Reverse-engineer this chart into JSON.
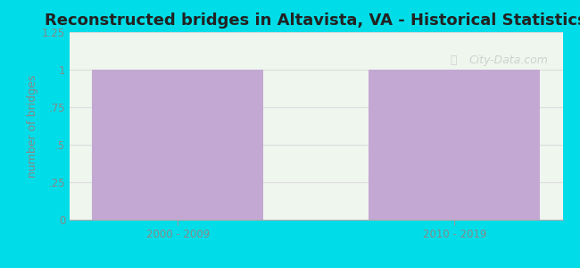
{
  "title": "Reconstructed bridges in Altavista, VA - Historical Statistics",
  "categories": [
    "2000 - 2009",
    "2010 - 2019"
  ],
  "values": [
    1,
    1
  ],
  "bar_color": "#c4a8d4",
  "ylim": [
    0,
    1.25
  ],
  "yticks": [
    0,
    0.25,
    0.5,
    0.75,
    1,
    1.25
  ],
  "ylabel": "number of bridges",
  "background_outer": "#00dde8",
  "background_inner": "#eef6ee",
  "title_fontsize": 13,
  "label_fontsize": 9,
  "tick_fontsize": 8.5,
  "ylabel_color": "#888888",
  "tick_color": "#888888",
  "title_color": "#222222",
  "watermark": "City-Data.com",
  "grid_color": "#dddddd"
}
